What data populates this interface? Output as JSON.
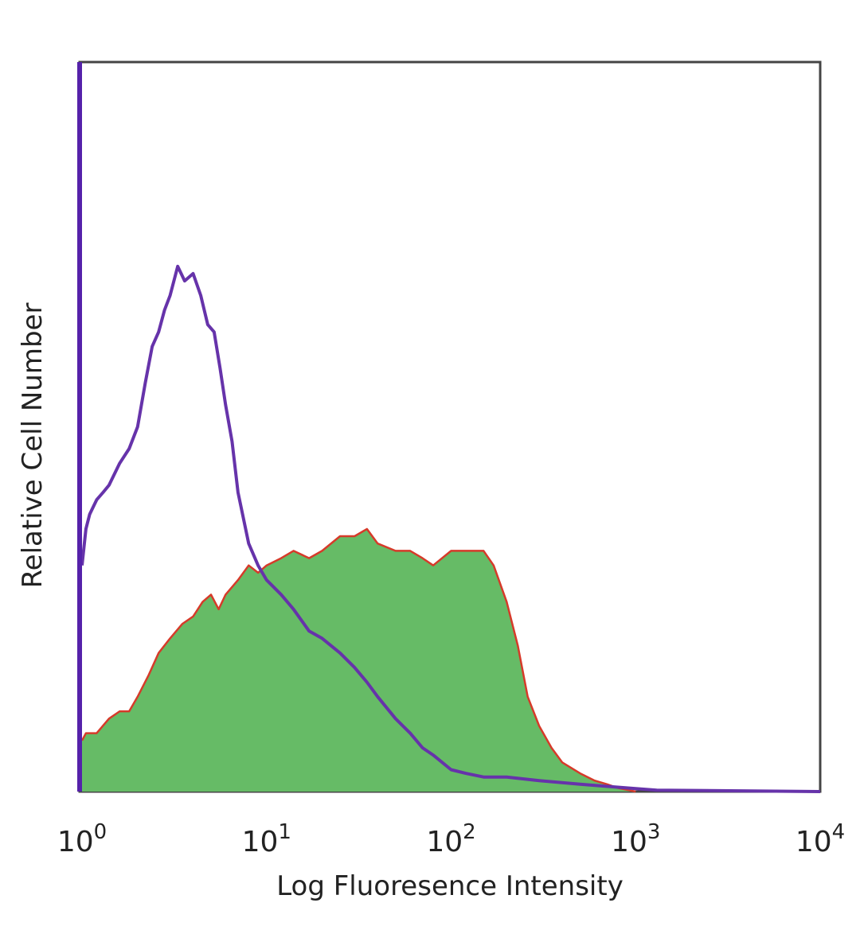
{
  "chart_data": {
    "type": "area",
    "title": "",
    "xlabel": "Log Fluoresence Intensity",
    "ylabel": "Relative Cell Number",
    "xscale": "log",
    "xlim": [
      1,
      10000
    ],
    "ylim": [
      0,
      100
    ],
    "x_ticks": [
      {
        "base": "10",
        "exp": "0"
      },
      {
        "base": "10",
        "exp": "1"
      },
      {
        "base": "10",
        "exp": "2"
      },
      {
        "base": "10",
        "exp": "3"
      },
      {
        "base": "10",
        "exp": "4"
      }
    ],
    "grid": false,
    "legend": "none",
    "y_ticks_shown": false,
    "series": [
      {
        "style": "filled",
        "fill_color": "#66bb66",
        "line_color": "#d63a2a",
        "x": [
          1.0,
          1.05,
          1.2,
          1.4,
          1.6,
          1.8,
          2.0,
          2.3,
          2.6,
          3.0,
          3.5,
          4.0,
          4.5,
          5.0,
          5.5,
          6.0,
          7.0,
          8.0,
          9.0,
          10,
          12,
          14,
          17,
          20,
          25,
          30,
          35,
          40,
          50,
          60,
          70,
          80,
          100,
          120,
          150,
          170,
          200,
          230,
          260,
          300,
          350,
          400,
          500,
          600,
          700,
          800,
          1000
        ],
        "y": [
          7,
          8,
          8,
          10,
          11,
          11,
          13,
          16,
          19,
          21,
          23,
          24,
          26,
          27,
          25,
          27,
          29,
          31,
          30,
          31,
          32,
          33,
          32,
          33,
          35,
          35,
          36,
          34,
          33,
          33,
          32,
          31,
          33,
          33,
          33,
          31,
          26,
          20,
          13,
          9,
          6,
          4,
          2.5,
          1.5,
          1,
          0.5,
          0
        ]
      },
      {
        "style": "line",
        "line_color": "#6633aa",
        "x": [
          1.0,
          1.05,
          1.1,
          1.2,
          1.3,
          1.4,
          1.6,
          1.8,
          2.0,
          2.2,
          2.4,
          2.6,
          2.8,
          3.0,
          3.3,
          3.6,
          4.0,
          4.4,
          4.8,
          5.2,
          5.6,
          6.0,
          6.5,
          7.0,
          8.0,
          9.0,
          10,
          12,
          14,
          17,
          20,
          25,
          30,
          35,
          40,
          50,
          60,
          70,
          80,
          100,
          120,
          150,
          200,
          300,
          500,
          800,
          1000,
          1300,
          10000
        ],
        "y": [
          31,
          36,
          38,
          40,
          41,
          42,
          45,
          47,
          50,
          56,
          61,
          63,
          66,
          68,
          72,
          70,
          71,
          68,
          64,
          63,
          58,
          53,
          48,
          41,
          34,
          31,
          29,
          27,
          25,
          22,
          21,
          19,
          17,
          15,
          13,
          10,
          8,
          6,
          5,
          3,
          2.5,
          2,
          2,
          1.5,
          1,
          0.6,
          0.4,
          0.2,
          0
        ]
      }
    ]
  }
}
